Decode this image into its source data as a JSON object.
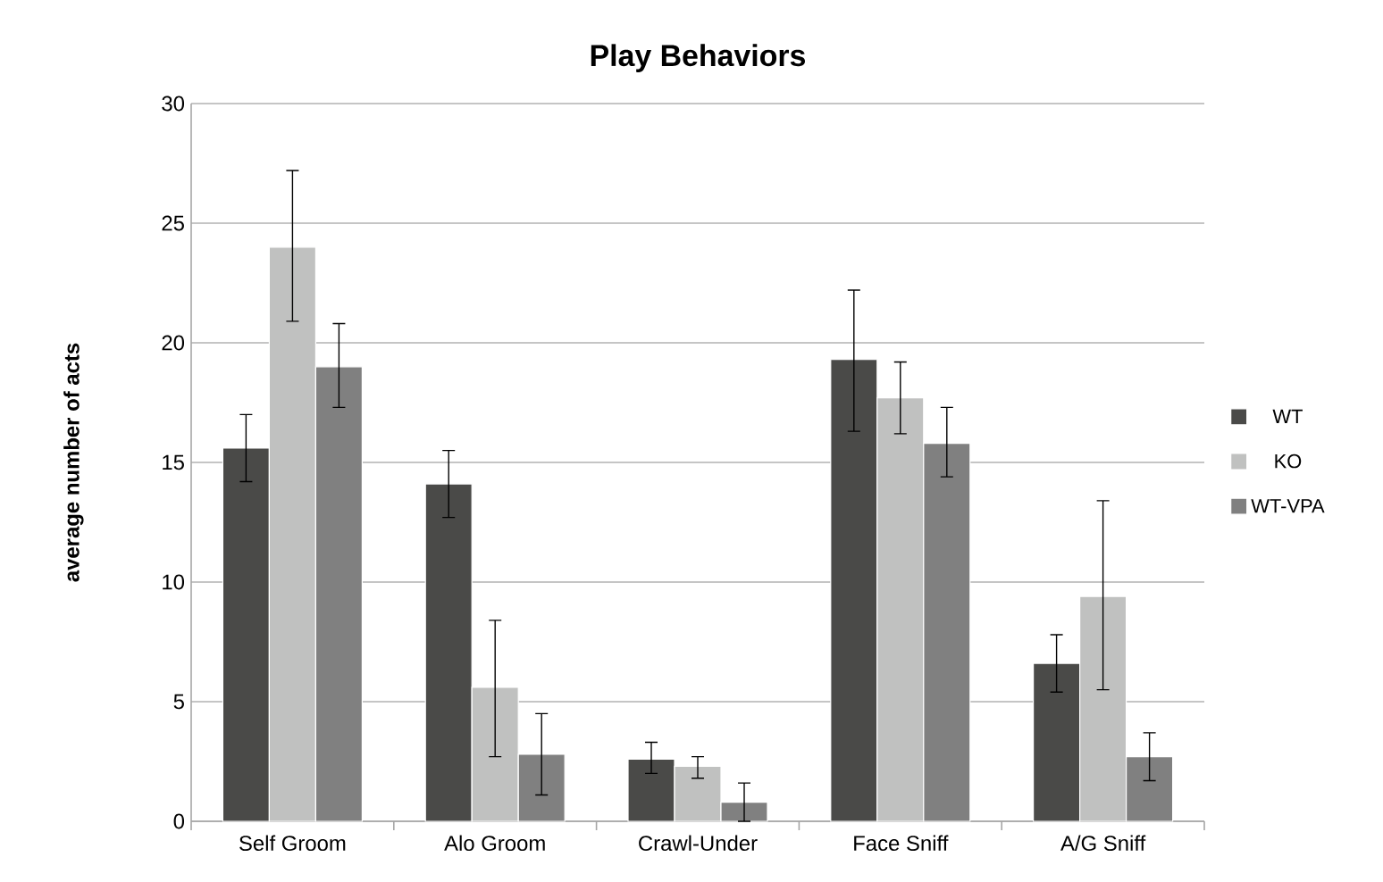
{
  "chart_data": {
    "type": "bar",
    "title": "Play Behaviors",
    "ylabel": "average number of acts",
    "categories": [
      "Self Groom",
      "Alo Groom",
      "Crawl-Under",
      "Face Sniff",
      "A/G Sniff"
    ],
    "series": [
      {
        "name": "WT",
        "color": "#4a4a48",
        "values": [
          15.6,
          14.1,
          2.6,
          19.3,
          6.6
        ],
        "errors": [
          [
            14.2,
            17.0
          ],
          [
            12.7,
            15.5
          ],
          [
            2.0,
            3.3
          ],
          [
            16.3,
            22.2
          ],
          [
            5.4,
            7.8
          ]
        ]
      },
      {
        "name": "KO",
        "color": "#c0c1c0",
        "values": [
          24.0,
          5.6,
          2.3,
          17.7,
          9.4
        ],
        "errors": [
          [
            20.9,
            27.2
          ],
          [
            2.7,
            8.4
          ],
          [
            1.8,
            2.7
          ],
          [
            16.2,
            19.2
          ],
          [
            5.5,
            13.4
          ]
        ]
      },
      {
        "name": "WT-VPA",
        "color": "#808080",
        "values": [
          19.0,
          2.8,
          0.8,
          15.8,
          2.7
        ],
        "errors": [
          [
            17.3,
            20.8
          ],
          [
            1.1,
            4.5
          ],
          [
            0.0,
            1.6
          ],
          [
            14.4,
            17.3
          ],
          [
            1.7,
            3.7
          ]
        ]
      }
    ],
    "ylim": [
      0,
      30
    ],
    "yticks": [
      0,
      5,
      10,
      15,
      20,
      25,
      30
    ],
    "grid": "y",
    "legend": "right"
  }
}
